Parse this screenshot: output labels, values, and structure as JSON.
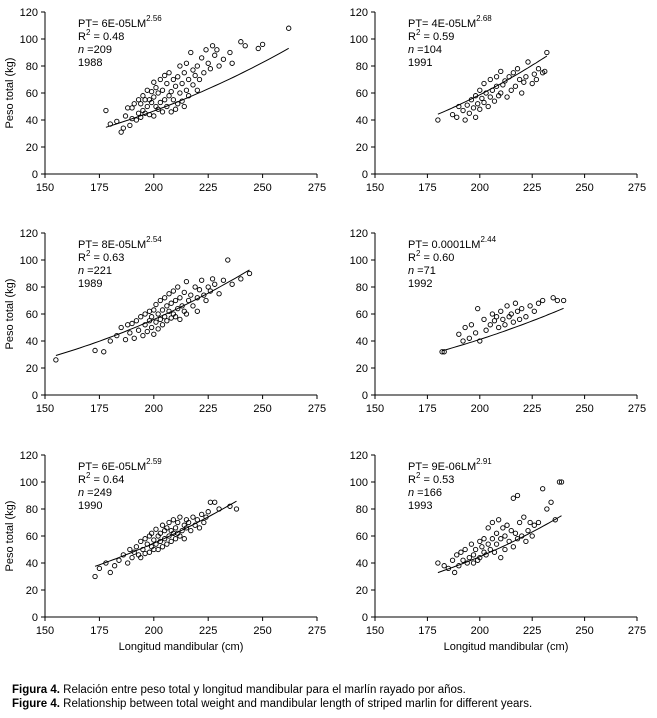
{
  "chart_data": [
    {
      "type": "scatter",
      "year": "1988",
      "annotation": {
        "eq_prefix": "PT= 6E-05LM",
        "exponent": "2.56",
        "r2_label": "R",
        "r2_sup": "2",
        "r2_value": " = 0.48",
        "n_label": "n",
        "n_value": " =209",
        "year": "1988"
      },
      "x": [
        178,
        180,
        183,
        185,
        186,
        187,
        188,
        189,
        190,
        190,
        191,
        192,
        193,
        193,
        194,
        194,
        195,
        195,
        196,
        196,
        197,
        197,
        198,
        198,
        199,
        199,
        200,
        200,
        200,
        201,
        201,
        202,
        202,
        203,
        203,
        204,
        204,
        205,
        205,
        206,
        206,
        207,
        207,
        208,
        208,
        209,
        209,
        210,
        210,
        211,
        211,
        212,
        212,
        213,
        213,
        214,
        214,
        215,
        215,
        216,
        216,
        217,
        218,
        218,
        219,
        220,
        220,
        221,
        222,
        223,
        224,
        225,
        226,
        227,
        228,
        229,
        230,
        232,
        235,
        236,
        240,
        242,
        248,
        250,
        262
      ],
      "y": [
        47,
        37,
        39,
        31,
        34,
        43,
        49,
        36,
        41,
        49,
        52,
        40,
        45,
        55,
        42,
        52,
        47,
        58,
        45,
        55,
        50,
        62,
        44,
        55,
        53,
        61,
        43,
        57,
        68,
        50,
        64,
        48,
        60,
        53,
        70,
        46,
        62,
        55,
        73,
        50,
        67,
        58,
        75,
        46,
        61,
        55,
        70,
        48,
        65,
        52,
        72,
        60,
        80,
        54,
        67,
        50,
        75,
        62,
        82,
        58,
        70,
        90,
        66,
        77,
        73,
        62,
        80,
        70,
        86,
        75,
        92,
        82,
        78,
        95,
        88,
        92,
        80,
        85,
        90,
        82,
        98,
        95,
        93,
        96,
        108
      ],
      "fit": {
        "a": 6e-05,
        "b": 2.56,
        "x_start": 178,
        "x_end": 262
      },
      "xlim": [
        150,
        275
      ],
      "ylim": [
        0,
        120
      ],
      "xticks": [
        "150",
        "175",
        "200",
        "225",
        "250",
        "275"
      ],
      "yticks": [
        "0",
        "20",
        "40",
        "60",
        "80",
        "100",
        "120"
      ],
      "ylabel": "Peso total (kg)",
      "xlabel": ""
    },
    {
      "type": "scatter",
      "year": "1991",
      "annotation": {
        "eq_prefix": "PT= 4E-05LM",
        "exponent": "2.68",
        "r2_label": "R",
        "r2_sup": "2",
        "r2_value": " = 0.59",
        "n_label": "n",
        "n_value": " =104",
        "year": "1991"
      },
      "x": [
        180,
        187,
        189,
        190,
        192,
        193,
        194,
        195,
        196,
        197,
        198,
        198,
        199,
        200,
        200,
        201,
        202,
        202,
        203,
        204,
        205,
        205,
        206,
        207,
        208,
        208,
        209,
        210,
        210,
        211,
        212,
        213,
        214,
        215,
        216,
        217,
        218,
        219,
        220,
        221,
        222,
        223,
        225,
        226,
        227,
        228,
        230,
        231,
        232
      ],
      "y": [
        40,
        44,
        42,
        50,
        47,
        40,
        51,
        45,
        55,
        49,
        42,
        58,
        52,
        48,
        62,
        56,
        53,
        67,
        60,
        50,
        57,
        70,
        62,
        54,
        65,
        72,
        58,
        60,
        76,
        66,
        69,
        57,
        72,
        62,
        75,
        65,
        78,
        70,
        60,
        68,
        72,
        83,
        67,
        74,
        70,
        78,
        75,
        76,
        90
      ],
      "fit": {
        "a": 4e-05,
        "b": 2.68,
        "x_start": 180,
        "x_end": 232
      },
      "xlim": [
        150,
        275
      ],
      "ylim": [
        0,
        120
      ],
      "xticks": [
        "150",
        "175",
        "200",
        "225",
        "250",
        "275"
      ],
      "yticks": [
        "0",
        "20",
        "40",
        "60",
        "80",
        "100",
        "120"
      ],
      "ylabel": "",
      "xlabel": ""
    },
    {
      "type": "scatter",
      "year": "1989",
      "annotation": {
        "eq_prefix": "PT= 8E-05LM",
        "exponent": "2.54",
        "r2_label": "R",
        "r2_sup": "2",
        "r2_value": " = 0.63",
        "n_label": "n",
        "n_value": " =221",
        "year": "1989"
      },
      "x": [
        155,
        173,
        177,
        180,
        183,
        185,
        187,
        188,
        189,
        190,
        191,
        192,
        193,
        194,
        195,
        196,
        196,
        197,
        198,
        198,
        199,
        199,
        200,
        200,
        201,
        201,
        202,
        202,
        203,
        203,
        204,
        204,
        205,
        205,
        206,
        206,
        207,
        207,
        208,
        208,
        209,
        209,
        210,
        210,
        211,
        211,
        212,
        212,
        213,
        214,
        214,
        215,
        215,
        216,
        217,
        218,
        219,
        220,
        220,
        221,
        222,
        223,
        224,
        225,
        226,
        227,
        228,
        230,
        232,
        234,
        236,
        240,
        244
      ],
      "y": [
        26,
        33,
        32,
        40,
        44,
        50,
        41,
        52,
        46,
        53,
        42,
        55,
        48,
        58,
        44,
        52,
        60,
        47,
        55,
        62,
        50,
        58,
        45,
        63,
        54,
        67,
        49,
        60,
        56,
        70,
        52,
        63,
        58,
        72,
        55,
        66,
        62,
        75,
        57,
        68,
        60,
        77,
        58,
        70,
        64,
        80,
        56,
        72,
        66,
        62,
        76,
        60,
        84,
        70,
        74,
        66,
        80,
        72,
        62,
        78,
        85,
        74,
        70,
        80,
        77,
        86,
        82,
        75,
        85,
        100,
        82,
        86,
        90
      ],
      "fit": {
        "a": 8e-05,
        "b": 2.54,
        "x_start": 155,
        "x_end": 244
      },
      "xlim": [
        150,
        275
      ],
      "ylim": [
        0,
        120
      ],
      "xticks": [
        "150",
        "175",
        "200",
        "225",
        "250",
        "275"
      ],
      "yticks": [
        "0",
        "20",
        "40",
        "60",
        "80",
        "100",
        "120"
      ],
      "ylabel": "Peso total (kg)",
      "xlabel": ""
    },
    {
      "type": "scatter",
      "year": "1992",
      "annotation": {
        "eq_prefix": "PT= 0.0001LM",
        "exponent": "2.44",
        "r2_label": "R",
        "r2_sup": "2",
        "r2_value": " = 0.60",
        "n_label": "n",
        "n_value": " =71",
        "year": "1992"
      },
      "x": [
        182,
        183,
        190,
        192,
        193,
        195,
        196,
        198,
        199,
        200,
        202,
        203,
        205,
        206,
        207,
        208,
        209,
        210,
        211,
        212,
        213,
        214,
        215,
        216,
        217,
        218,
        219,
        220,
        222,
        224,
        226,
        228,
        230,
        235,
        237,
        240
      ],
      "y": [
        32,
        32,
        45,
        40,
        50,
        42,
        52,
        46,
        64,
        40,
        56,
        48,
        52,
        60,
        55,
        58,
        50,
        62,
        56,
        52,
        66,
        58,
        60,
        54,
        68,
        62,
        56,
        64,
        58,
        66,
        62,
        68,
        70,
        72,
        70,
        70
      ],
      "fit": {
        "a": 0.0001,
        "b": 2.44,
        "x_start": 182,
        "x_end": 240
      },
      "xlim": [
        150,
        275
      ],
      "ylim": [
        0,
        120
      ],
      "xticks": [
        "150",
        "175",
        "200",
        "225",
        "250",
        "275"
      ],
      "yticks": [
        "0",
        "20",
        "40",
        "60",
        "80",
        "100",
        "120"
      ],
      "ylabel": "",
      "xlabel": ""
    },
    {
      "type": "scatter",
      "year": "1990",
      "annotation": {
        "eq_prefix": "PT= 6E-05LM",
        "exponent": "2.59",
        "r2_label": "R",
        "r2_sup": "2",
        "r2_value": " = 0.64",
        "n_label": "n",
        "n_value": " =249",
        "year": "1990"
      },
      "x": [
        173,
        175,
        178,
        180,
        182,
        184,
        186,
        188,
        189,
        190,
        191,
        192,
        193,
        194,
        194,
        195,
        196,
        196,
        197,
        198,
        198,
        199,
        199,
        200,
        200,
        201,
        201,
        202,
        202,
        203,
        203,
        204,
        204,
        205,
        205,
        206,
        206,
        207,
        207,
        208,
        208,
        209,
        209,
        210,
        210,
        211,
        211,
        212,
        212,
        213,
        214,
        214,
        215,
        215,
        216,
        217,
        218,
        219,
        220,
        221,
        222,
        223,
        224,
        225,
        226,
        228,
        230,
        235,
        238
      ],
      "y": [
        30,
        36,
        40,
        33,
        38,
        42,
        46,
        40,
        50,
        44,
        48,
        52,
        46,
        56,
        44,
        50,
        58,
        47,
        54,
        60,
        48,
        52,
        62,
        50,
        57,
        54,
        65,
        50,
        60,
        56,
        62,
        52,
        68,
        58,
        64,
        54,
        66,
        60,
        70,
        56,
        64,
        62,
        72,
        58,
        66,
        62,
        70,
        60,
        74,
        64,
        68,
        58,
        72,
        66,
        70,
        64,
        74,
        68,
        72,
        66,
        76,
        70,
        74,
        78,
        85,
        85,
        80,
        82,
        80
      ],
      "fit": {
        "a": 6e-05,
        "b": 2.59,
        "x_start": 173,
        "x_end": 238
      },
      "xlim": [
        150,
        275
      ],
      "ylim": [
        0,
        120
      ],
      "xticks": [
        "150",
        "175",
        "200",
        "225",
        "250",
        "275"
      ],
      "yticks": [
        "0",
        "20",
        "40",
        "60",
        "80",
        "100",
        "120"
      ],
      "ylabel": "Peso total (kg)",
      "xlabel": "Longitud mandibular (cm)"
    },
    {
      "type": "scatter",
      "year": "1993",
      "annotation": {
        "eq_prefix": "PT= 9E-06LM",
        "exponent": "2.91",
        "r2_label": "R",
        "r2_sup": "2",
        "r2_value": " = 0.53",
        "n_label": "n",
        "n_value": " =166",
        "year": "1993"
      },
      "x": [
        180,
        183,
        185,
        187,
        188,
        189,
        190,
        191,
        192,
        193,
        194,
        195,
        196,
        197,
        197,
        198,
        199,
        200,
        200,
        201,
        202,
        202,
        203,
        204,
        204,
        205,
        206,
        206,
        207,
        208,
        208,
        209,
        210,
        210,
        211,
        212,
        212,
        213,
        214,
        215,
        216,
        216,
        217,
        218,
        218,
        219,
        220,
        221,
        222,
        223,
        224,
        225,
        226,
        228,
        230,
        232,
        234,
        236,
        238,
        239
      ],
      "y": [
        40,
        38,
        36,
        42,
        33,
        46,
        38,
        48,
        42,
        50,
        40,
        44,
        54,
        40,
        46,
        50,
        42,
        56,
        44,
        52,
        48,
        58,
        46,
        66,
        54,
        50,
        70,
        58,
        48,
        62,
        54,
        72,
        44,
        58,
        66,
        50,
        60,
        68,
        56,
        64,
        88,
        52,
        62,
        90,
        58,
        70,
        60,
        74,
        56,
        64,
        70,
        60,
        68,
        70,
        95,
        80,
        85,
        72,
        100,
        100
      ],
      "fit": {
        "a": 9e-06,
        "b": 2.91,
        "x_start": 180,
        "x_end": 239
      },
      "xlim": [
        150,
        275
      ],
      "ylim": [
        0,
        120
      ],
      "xticks": [
        "150",
        "175",
        "200",
        "225",
        "250",
        "275"
      ],
      "yticks": [
        "0",
        "20",
        "40",
        "60",
        "80",
        "100",
        "120"
      ],
      "ylabel": "",
      "xlabel": "Longitud mandibular (cm)"
    }
  ],
  "caption": {
    "es_label": "Figura 4.",
    "es_text": " Relación entre peso total y longitud mandibular para el marlín rayado por años.",
    "en_label": "Figure 4.",
    "en_text": " Relationship between total weight and mandibular length of striped marlin for different years."
  }
}
